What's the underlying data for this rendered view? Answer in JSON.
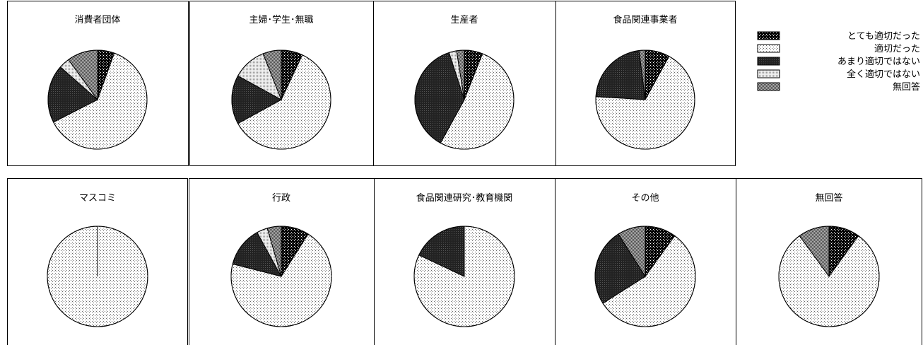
{
  "legend": {
    "items": [
      {
        "label": "とても適切だった",
        "pattern": "dark-dots"
      },
      {
        "label": "適切だった",
        "pattern": "light-dots"
      },
      {
        "label": "あまり適切ではない",
        "pattern": "dark-solid"
      },
      {
        "label": "全く適切ではない",
        "pattern": "medium-dots"
      },
      {
        "label": "無回答",
        "pattern": "checker"
      }
    ]
  },
  "colors": {
    "line": "#000000",
    "background": "#ffffff",
    "dark_dots_bg": "#000000",
    "light_dots_bg": "#ffffff",
    "dark_solid": "#222222",
    "medium_dots_bg": "#e6e6e6",
    "checker_bg": "#9a9a9a"
  },
  "chart_data": [
    {
      "type": "pie",
      "title": "消費者団体",
      "slices": [
        {
          "category": "とても適切だった",
          "value": 5.5
        },
        {
          "category": "適切だった",
          "value": 62
        },
        {
          "category": "あまり適切ではない",
          "value": 19
        },
        {
          "category": "全く適切ではない",
          "value": 3.5
        },
        {
          "category": "無回答",
          "value": 10
        }
      ]
    },
    {
      "type": "pie",
      "title": "主婦･学生･無職",
      "slices": [
        {
          "category": "とても適切だった",
          "value": 7
        },
        {
          "category": "適切だった",
          "value": 60
        },
        {
          "category": "あまり適切ではない",
          "value": 16
        },
        {
          "category": "全く適切ではない",
          "value": 11
        },
        {
          "category": "無回答",
          "value": 6
        }
      ]
    },
    {
      "type": "pie",
      "title": "生産者",
      "slices": [
        {
          "category": "とても適切だった",
          "value": 6
        },
        {
          "category": "適切だった",
          "value": 52
        },
        {
          "category": "あまり適切ではない",
          "value": 37
        },
        {
          "category": "全く適切ではない",
          "value": 2.5
        },
        {
          "category": "無回答",
          "value": 2.5
        }
      ]
    },
    {
      "type": "pie",
      "title": "食品関連事業者",
      "slices": [
        {
          "category": "とても適切だった",
          "value": 8
        },
        {
          "category": "適切だった",
          "value": 68
        },
        {
          "category": "あまり適切ではない",
          "value": 22
        },
        {
          "category": "全く適切ではない",
          "value": 0
        },
        {
          "category": "無回答",
          "value": 2
        }
      ]
    },
    {
      "type": "pie",
      "title": "マスコミ",
      "slices": [
        {
          "category": "とても適切だった",
          "value": 0
        },
        {
          "category": "適切だった",
          "value": 100
        },
        {
          "category": "あまり適切ではない",
          "value": 0
        },
        {
          "category": "全く適切ではない",
          "value": 0
        },
        {
          "category": "無回答",
          "value": 0
        }
      ]
    },
    {
      "type": "pie",
      "title": "行政",
      "slices": [
        {
          "category": "とても適切だった",
          "value": 9
        },
        {
          "category": "適切だった",
          "value": 70
        },
        {
          "category": "あまり適切ではない",
          "value": 13
        },
        {
          "category": "全く適切ではない",
          "value": 3.5
        },
        {
          "category": "無回答",
          "value": 4.5
        }
      ]
    },
    {
      "type": "pie",
      "title": "食品関連研究･教育機関",
      "slices": [
        {
          "category": "とても適切だった",
          "value": 0
        },
        {
          "category": "適切だった",
          "value": 82
        },
        {
          "category": "あまり適切ではない",
          "value": 18
        },
        {
          "category": "全く適切ではない",
          "value": 0
        },
        {
          "category": "無回答",
          "value": 0
        }
      ]
    },
    {
      "type": "pie",
      "title": "その他",
      "slices": [
        {
          "category": "とても適切だった",
          "value": 10
        },
        {
          "category": "適切だった",
          "value": 56
        },
        {
          "category": "あまり適切ではない",
          "value": 25
        },
        {
          "category": "全く適切ではない",
          "value": 0
        },
        {
          "category": "無回答",
          "value": 9
        }
      ]
    },
    {
      "type": "pie",
      "title": "無回答",
      "slices": [
        {
          "category": "とても適切だった",
          "value": 10
        },
        {
          "category": "適切だった",
          "value": 80
        },
        {
          "category": "あまり適切ではない",
          "value": 0
        },
        {
          "category": "全く適切ではない",
          "value": 0
        },
        {
          "category": "無回答",
          "value": 10
        }
      ]
    }
  ]
}
